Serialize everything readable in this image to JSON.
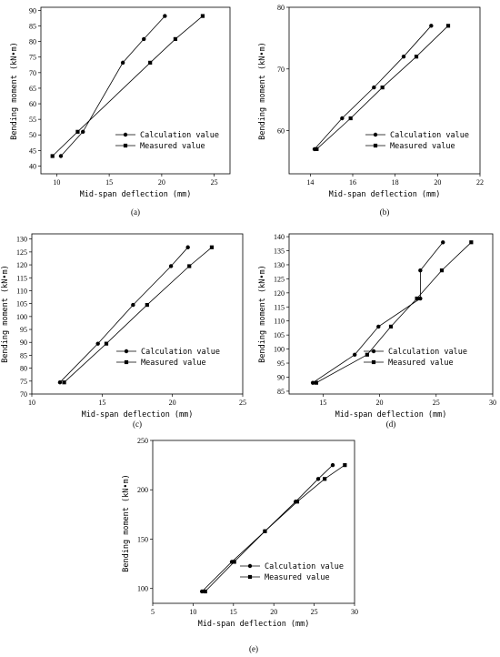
{
  "chart_data": [
    {
      "type": "line",
      "panel": "(a)",
      "xlabel": "Mid-span deflection (mm)",
      "ylabel": "Bending moment (kN•m)",
      "xlim": [
        8.5,
        26.5
      ],
      "ylim": [
        37.5,
        91
      ],
      "xticks": [
        10,
        15,
        20,
        25
      ],
      "yticks": [
        40,
        45,
        50,
        55,
        60,
        65,
        70,
        75,
        80,
        85,
        90
      ],
      "legend_position": "bottom-right",
      "series": [
        {
          "name": "Calculation value",
          "marker": "circle",
          "x": [
            10.4,
            12.5,
            16.3,
            18.3,
            20.3
          ],
          "y": [
            43.2,
            51.0,
            73.2,
            80.8,
            88.2
          ]
        },
        {
          "name": "Measured value",
          "marker": "square",
          "x": [
            9.6,
            12.0,
            18.9,
            21.3,
            23.9
          ],
          "y": [
            43.2,
            51.0,
            73.2,
            80.8,
            88.2
          ]
        }
      ]
    },
    {
      "type": "line",
      "panel": "(b)",
      "xlabel": "Mid-span deflection (mm)",
      "ylabel": "Bending moment (kN•m)",
      "xlim": [
        13,
        22
      ],
      "ylim": [
        53,
        80
      ],
      "xticks": [
        14,
        16,
        18,
        20,
        22
      ],
      "yticks": [
        60,
        70,
        80
      ],
      "legend_position": "bottom-right",
      "series": [
        {
          "name": "Calculation value",
          "marker": "circle",
          "x": [
            14.2,
            15.5,
            17.0,
            18.4,
            19.7
          ],
          "y": [
            57.0,
            62.0,
            67.0,
            72.0,
            77.0
          ]
        },
        {
          "name": "Measured value",
          "marker": "square",
          "x": [
            14.3,
            15.9,
            17.4,
            19.0,
            20.5
          ],
          "y": [
            57.0,
            62.0,
            67.0,
            72.0,
            77.0
          ]
        }
      ]
    },
    {
      "type": "line",
      "panel": "(c)",
      "xlabel": "Mid-span deflection (mm)",
      "ylabel": "Bending moment (kN•m)",
      "xlim": [
        10,
        25
      ],
      "ylim": [
        70,
        132
      ],
      "xticks": [
        10,
        15,
        20,
        25
      ],
      "yticks": [
        70,
        75,
        80,
        85,
        90,
        95,
        100,
        105,
        110,
        115,
        120,
        125,
        130
      ],
      "legend_position": "bottom-right",
      "series": [
        {
          "name": "Calculation value",
          "marker": "circle",
          "x": [
            12.0,
            14.7,
            17.2,
            19.9,
            21.1
          ],
          "y": [
            74.5,
            89.5,
            104.5,
            119.5,
            126.8
          ]
        },
        {
          "name": "Measured value",
          "marker": "square",
          "x": [
            12.3,
            15.3,
            18.2,
            21.2,
            22.8
          ],
          "y": [
            74.5,
            89.5,
            104.5,
            119.5,
            126.8
          ]
        }
      ]
    },
    {
      "type": "line",
      "panel": "(d)",
      "xlabel": "Mid-span deflection (mm)",
      "ylabel": "Bending moment (kN•m)",
      "xlim": [
        12,
        30
      ],
      "ylim": [
        84,
        141
      ],
      "xticks": [
        15,
        20,
        25,
        30
      ],
      "yticks": [
        85,
        90,
        95,
        100,
        105,
        110,
        115,
        120,
        125,
        130,
        135,
        140
      ],
      "legend_position": "bottom-right",
      "series": [
        {
          "name": "Calculation value",
          "marker": "circle",
          "x": [
            14.1,
            17.8,
            19.9,
            23.6,
            23.6,
            25.6
          ],
          "y": [
            88.0,
            98.0,
            108.0,
            118.0,
            128.0,
            138.0
          ]
        },
        {
          "name": "Measured value",
          "marker": "square",
          "x": [
            14.4,
            18.9,
            21.0,
            23.3,
            25.5,
            28.1
          ],
          "y": [
            88.0,
            98.0,
            108.0,
            118.0,
            128.0,
            138.0
          ]
        }
      ]
    },
    {
      "type": "line",
      "panel": "(e)",
      "xlabel": "Mid-span deflection (mm)",
      "ylabel": "Bending moment (kN•m)",
      "xlim": [
        5,
        30
      ],
      "ylim": [
        85,
        250
      ],
      "xticks": [
        5,
        10,
        15,
        20,
        25,
        30
      ],
      "yticks": [
        100,
        150,
        200,
        250
      ],
      "legend_position": "bottom-right",
      "series": [
        {
          "name": "Calculation value",
          "marker": "circle",
          "x": [
            11.1,
            14.8,
            18.9,
            22.7,
            25.5,
            27.3
          ],
          "y": [
            97.0,
            127.0,
            158.0,
            188.0,
            211.0,
            225.0
          ]
        },
        {
          "name": "Measured value",
          "marker": "square",
          "x": [
            11.5,
            15.1,
            18.9,
            22.9,
            26.3,
            28.8
          ],
          "y": [
            97.0,
            127.0,
            158.0,
            188.0,
            211.0,
            225.0
          ]
        }
      ]
    }
  ]
}
